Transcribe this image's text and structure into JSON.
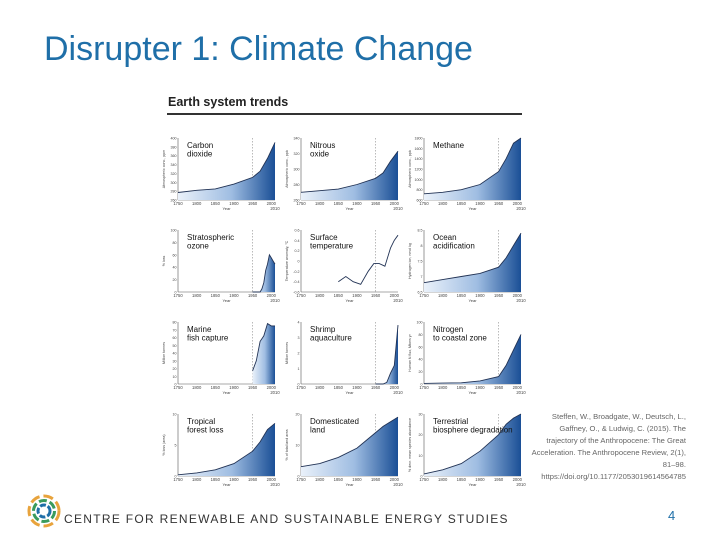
{
  "slide": {
    "title": "Disrupter 1: Climate Change",
    "figure_title": "Earth system trends",
    "citation": "Steffen, W., Broadgate, W., Deutsch, L., Gaffney, O., & Ludwig, C. (2015). The trajectory of the Anthropocene: The Great Acceleration. The Anthropocene Review, 2(1), 81–98. https://doi.org/10.1177/2053019614564785",
    "organization": "CENTRE FOR RENEWABLE AND SUSTAINABLE ENERGY STUDIES",
    "page_number": "4",
    "colors": {
      "title": "#1f6fa8",
      "fill_dark": "#1a4f96",
      "fill_light": "#eaf1fa",
      "line": "#223355"
    }
  },
  "chart_data": [
    {
      "type": "area",
      "title": "Carbon dioxide",
      "ylabel": "Atmospheric conc., ppm",
      "xlabel": "Year",
      "x": [
        1750,
        1800,
        1850,
        1900,
        1950,
        1970,
        1990,
        2010
      ],
      "y": [
        277,
        282,
        285,
        296,
        311,
        325,
        354,
        390
      ],
      "ylim": [
        260,
        400
      ],
      "yticks": [
        "260",
        "280",
        "300",
        "320",
        "340",
        "360",
        "380",
        "400"
      ]
    },
    {
      "type": "area",
      "title": "Nitrous oxide",
      "ylabel": "Atmospheric conc., ppb",
      "xlabel": "Year",
      "x": [
        1750,
        1800,
        1850,
        1900,
        1950,
        1970,
        1990,
        2010
      ],
      "y": [
        270,
        272,
        274,
        280,
        288,
        295,
        310,
        323
      ],
      "ylim": [
        260,
        340
      ],
      "yticks": [
        "260",
        "280",
        "300",
        "320",
        "340"
      ]
    },
    {
      "type": "area",
      "title": "Methane",
      "ylabel": "Atmospheric conc., ppb",
      "xlabel": "Year",
      "x": [
        1750,
        1800,
        1850,
        1900,
        1950,
        1970,
        1990,
        2010
      ],
      "y": [
        720,
        750,
        800,
        900,
        1150,
        1400,
        1700,
        1800
      ],
      "ylim": [
        600,
        1800
      ],
      "yticks": [
        "600",
        "800",
        "1000",
        "1200",
        "1400",
        "1600",
        "1800"
      ]
    },
    {
      "type": "area",
      "title": "Stratospheric ozone",
      "ylabel": "% loss",
      "xlabel": "Year",
      "x": [
        1950,
        1970,
        1975,
        1980,
        1985,
        1990,
        1995,
        2000,
        2005,
        2010
      ],
      "y": [
        0,
        0,
        5,
        15,
        35,
        45,
        60,
        55,
        50,
        45
      ],
      "ylim": [
        0,
        100
      ],
      "yticks": [
        "0",
        "20",
        "40",
        "60",
        "80",
        "100"
      ]
    },
    {
      "type": "line",
      "title": "Surface temperature",
      "ylabel": "Temperature anomaly, °C",
      "xlabel": "Year",
      "x": [
        1850,
        1870,
        1890,
        1910,
        1930,
        1945,
        1960,
        1975,
        1990,
        2000,
        2010
      ],
      "y": [
        -0.4,
        -0.3,
        -0.4,
        -0.45,
        -0.2,
        -0.05,
        -0.05,
        -0.1,
        0.25,
        0.4,
        0.5
      ],
      "ylim": [
        -0.6,
        0.6
      ],
      "yticks": [
        "-0.6",
        "-0.4",
        "-0.2",
        "0",
        "0.2",
        "0.4",
        "0.6"
      ]
    },
    {
      "type": "area",
      "title": "Ocean acidification",
      "ylabel": "Hydrogen ion, nmol kg",
      "xlabel": "Year",
      "x": [
        1750,
        1800,
        1850,
        1900,
        1950,
        1970,
        1990,
        2010
      ],
      "y": [
        6.8,
        6.9,
        7.0,
        7.1,
        7.3,
        7.6,
        8.0,
        8.4
      ],
      "ylim": [
        6.5,
        8.5
      ],
      "yticks": [
        "6.5",
        "7",
        "7.5",
        "8",
        "8.5"
      ]
    },
    {
      "type": "area",
      "title": "Marine fish capture",
      "ylabel": "Million tonnes",
      "xlabel": "Year",
      "x": [
        1950,
        1960,
        1970,
        1980,
        1990,
        2000,
        2010
      ],
      "y": [
        17,
        30,
        55,
        62,
        78,
        75,
        75
      ],
      "ylim": [
        0,
        80
      ],
      "yticks": [
        "0",
        "10",
        "20",
        "30",
        "40",
        "50",
        "60",
        "70",
        "80"
      ]
    },
    {
      "type": "area",
      "title": "Shrimp aquaculture",
      "ylabel": "Million tonnes",
      "xlabel": "Year",
      "x": [
        1950,
        1970,
        1980,
        1990,
        2000,
        2010
      ],
      "y": [
        0,
        0,
        0.1,
        0.7,
        1.2,
        3.8
      ],
      "ylim": [
        0,
        4
      ],
      "yticks": [
        "0",
        "1",
        "2",
        "3",
        "4"
      ]
    },
    {
      "type": "area",
      "title": "Nitrogen to coastal zone",
      "ylabel": "Human N flux, Mtons yr",
      "xlabel": "Year",
      "x": [
        1750,
        1800,
        1850,
        1900,
        1950,
        1970,
        1990,
        2010
      ],
      "y": [
        1,
        1.5,
        2,
        5,
        12,
        30,
        55,
        80
      ],
      "ylim": [
        0,
        100
      ],
      "yticks": [
        "0",
        "20",
        "40",
        "60",
        "80",
        "100"
      ]
    },
    {
      "type": "area",
      "title": "Tropical forest loss",
      "ylabel": "% loss (area)",
      "xlabel": "Year",
      "x": [
        1750,
        1800,
        1850,
        1900,
        1950,
        1970,
        1990,
        2010
      ],
      "y": [
        0.2,
        0.5,
        1,
        2,
        4,
        5.5,
        7.5,
        8.5
      ],
      "ylim": [
        0,
        10
      ],
      "yticks": [
        "0",
        "5",
        "10"
      ]
    },
    {
      "type": "area",
      "title": "Domesticated land",
      "ylabel": "% of total land area",
      "xlabel": "Year",
      "x": [
        1750,
        1800,
        1850,
        1900,
        1950,
        1970,
        1990,
        2010
      ],
      "y": [
        3,
        4,
        6,
        9,
        14,
        16,
        17.5,
        19
      ],
      "ylim": [
        0,
        20
      ],
      "yticks": [
        "0",
        "10",
        "20"
      ]
    },
    {
      "type": "area",
      "title": "Terrestrial biosphere degradation",
      "ylabel": "% decr. mean species abundance",
      "xlabel": "Year",
      "x": [
        1750,
        1800,
        1850,
        1900,
        1950,
        1970,
        1990,
        2010
      ],
      "y": [
        1,
        3,
        6,
        12,
        20,
        25,
        28,
        30
      ],
      "ylim": [
        0,
        30
      ],
      "yticks": [
        "0",
        "10",
        "20",
        "30"
      ]
    }
  ],
  "x_axis": {
    "ticks": [
      "1750",
      "1800",
      "1850",
      "1900",
      "1950",
      "2000"
    ],
    "end_label": "2010",
    "label": "Year",
    "marker_year": 1950
  }
}
